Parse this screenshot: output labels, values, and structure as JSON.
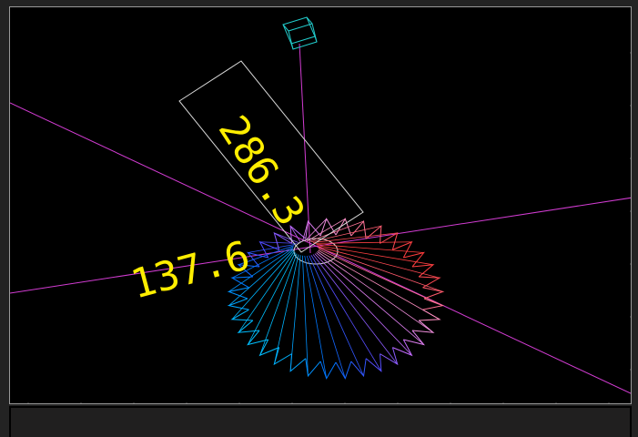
{
  "viewport": {
    "background": "#000000",
    "axis_color": "#d23cd2",
    "box_color": "#d8d8d8",
    "camera_icon": "wireframe-cube-icon",
    "camera_color": "#22cccc",
    "label_color": "#ffee00",
    "dimension_vertical": "286.3",
    "dimension_horizontal": "137.6"
  },
  "gear": {
    "teeth": 36,
    "palette": [
      "#ff3c3c",
      "#ff9ad5",
      "#c86cff",
      "#4a4aff",
      "#0070ff",
      "#00c0ff"
    ]
  },
  "bottom_panel": {
    "background": "#201f1f"
  }
}
